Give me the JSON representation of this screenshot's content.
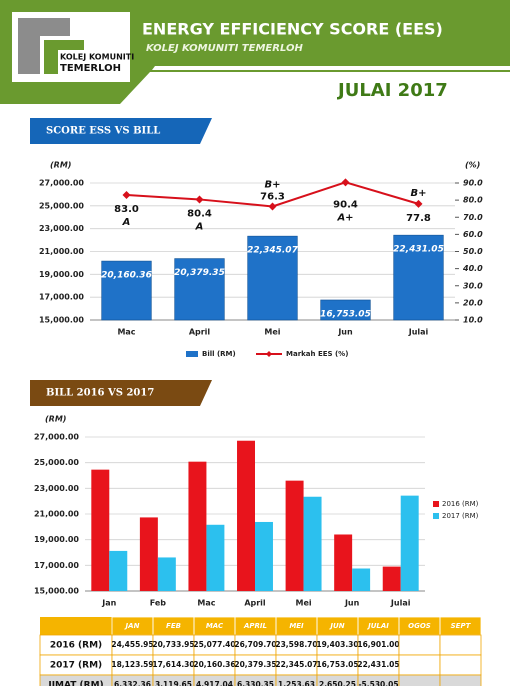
{
  "header": {
    "logo_line1": "KOLEJ KOMUNITI",
    "logo_line2": "TEMERLOH",
    "title": "ENERGY EFFICIENCY SCORE (EES)",
    "subtitle": "KOLEJ KOMUNITI TEMERLOH",
    "month": "JULAI 2017"
  },
  "sections": [
    "SCORE ESS VS BILL",
    "BILL 2016 VS 2017"
  ],
  "chart_data": [
    {
      "type": "bar-line",
      "ylabel": "(RM)",
      "y2label": "(%)",
      "categories": [
        "Mac",
        "April",
        "Mei",
        "Jun",
        "Julai"
      ],
      "series": [
        {
          "name": "Bill (RM)",
          "color": "#1f72c8",
          "values": [
            20160.36,
            20379.35,
            22345.07,
            16753.05,
            22431.05
          ],
          "value_labels": [
            "20,160.36",
            "20,379.35",
            "22,345.07",
            "16,753.05",
            "22,431.05"
          ]
        },
        {
          "name": "Markah EES (%)",
          "color": "#d7101b",
          "axis": "y2",
          "values": [
            83.0,
            80.4,
            76.3,
            90.4,
            77.8
          ],
          "value_labels": [
            "83.0",
            "80.4",
            "76.3",
            "90.4",
            "77.8"
          ],
          "grades": [
            "A",
            "A",
            "B+",
            "A+",
            "B+"
          ]
        }
      ],
      "ylim": [
        15000,
        27000
      ],
      "yticks": [
        {
          "value": 15000,
          "label": "15,000.00"
        },
        {
          "value": 17000,
          "label": "17,000.00"
        },
        {
          "value": 19000,
          "label": "19,000.00"
        },
        {
          "value": 21000,
          "label": "21,000.00"
        },
        {
          "value": 23000,
          "label": "23,000.00"
        },
        {
          "value": 25000,
          "label": "25,000.00"
        },
        {
          "value": 27000,
          "label": "27,000.00"
        }
      ],
      "y2lim": [
        10,
        90
      ],
      "y2ticks": [
        {
          "value": 10,
          "label": "10.0"
        },
        {
          "value": 20,
          "label": "20.0"
        },
        {
          "value": 30,
          "label": "30.0"
        },
        {
          "value": 40,
          "label": "40.0"
        },
        {
          "value": 50,
          "label": "50.0"
        },
        {
          "value": 60,
          "label": "60.0"
        },
        {
          "value": 70,
          "label": "70.0"
        },
        {
          "value": 80,
          "label": "80.0"
        },
        {
          "value": 90,
          "label": "90.0"
        }
      ],
      "grid": true,
      "legend": "bottom"
    },
    {
      "type": "grouped-bar",
      "ylabel": "(RM)",
      "categories": [
        "Jan",
        "Feb",
        "Mac",
        "April",
        "Mei",
        "Jun",
        "Julai"
      ],
      "series": [
        {
          "name": "2016 (RM)",
          "color": "#e8141c",
          "values": [
            24455.95,
            20733.95,
            25077.4,
            26709.7,
            23598.7,
            19403.3,
            16901.0
          ]
        },
        {
          "name": "2017 (RM)",
          "color": "#2cc0ee",
          "values": [
            18123.59,
            17614.3,
            20160.36,
            20379.35,
            22345.07,
            16753.05,
            22431.05
          ]
        }
      ],
      "ylim": [
        15000,
        27000
      ],
      "yticks": [
        {
          "value": 15000,
          "label": "15,000.00"
        },
        {
          "value": 17000,
          "label": "17,000.00"
        },
        {
          "value": 19000,
          "label": "19,000.00"
        },
        {
          "value": 21000,
          "label": "21,000.00"
        },
        {
          "value": 23000,
          "label": "23,000.00"
        },
        {
          "value": 25000,
          "label": "25,000.00"
        },
        {
          "value": 27000,
          "label": "27,000.00"
        }
      ],
      "grid": true,
      "legend": "right"
    }
  ],
  "table": {
    "header": [
      "JAN",
      "FEB",
      "MAC",
      "APRIL",
      "MEI",
      "JUN",
      "JULAI",
      "OGOS",
      "SEPT"
    ],
    "rows": [
      [
        "2016 (RM)",
        "24,455.95",
        "20,733.95",
        "25,077.40",
        "26,709.70",
        "23,598.70",
        "19,403.30",
        "16,901.00"
      ],
      [
        "2017 (RM)",
        "18,123.59",
        "17,614.30",
        "20,160.36",
        "20,379.35",
        "22,345.07",
        "16,753.05",
        "22,431.05"
      ],
      [
        "JIMAT (RM)",
        "6,332.36",
        "3,119.65",
        "4,917.04",
        "6,330.35",
        "1,253.63",
        "2,650.25",
        "-5,530.05"
      ]
    ]
  }
}
